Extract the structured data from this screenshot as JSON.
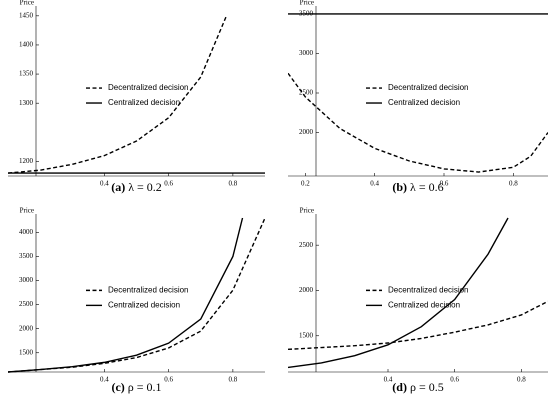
{
  "chart_data": [
    {
      "type": "line",
      "caption_label": "(a)",
      "caption_text": "λ = 0.2",
      "ylabel": "Price",
      "xlim": [
        0.1,
        0.9
      ],
      "xticks": [
        0.4,
        0.6,
        0.8
      ],
      "ylim": [
        1175,
        1460
      ],
      "yticks": [
        1200,
        1300,
        1350,
        1400,
        1450
      ],
      "series": [
        {
          "name": "Decentralized decision",
          "color": "#000000",
          "style": "dashed",
          "x": [
            0.1,
            0.2,
            0.3,
            0.4,
            0.5,
            0.6,
            0.7,
            0.78
          ],
          "values": [
            1180,
            1185,
            1195,
            1210,
            1235,
            1275,
            1345,
            1450
          ]
        },
        {
          "name": "Centralized decision",
          "color": "#000000",
          "style": "solid",
          "x": [
            0.1,
            0.9
          ],
          "values": [
            1180,
            1180
          ]
        }
      ]
    },
    {
      "type": "line",
      "caption_label": "(b)",
      "caption_text": "λ = 0.6",
      "ylabel": "Price",
      "xlim": [
        0.15,
        0.9
      ],
      "xticks": [
        0.2,
        0.4,
        0.6,
        0.8
      ],
      "ylim": [
        1450,
        3550
      ],
      "yticks": [
        2000,
        2500,
        3000,
        3500
      ],
      "series": [
        {
          "name": "Decentralized decision",
          "color": "#000000",
          "style": "dashed",
          "x": [
            0.15,
            0.2,
            0.3,
            0.4,
            0.5,
            0.6,
            0.7,
            0.8,
            0.85,
            0.9
          ],
          "values": [
            2750,
            2450,
            2050,
            1800,
            1640,
            1540,
            1500,
            1560,
            1700,
            2000
          ]
        },
        {
          "name": "Centralized decision",
          "color": "#000000",
          "style": "solid",
          "x": [
            0.15,
            0.9
          ],
          "values": [
            3500,
            3500
          ]
        }
      ]
    },
    {
      "type": "line",
      "caption_label": "(c)",
      "caption_text": "ρ = 0.1",
      "ylabel": "Price",
      "xlim": [
        0.1,
        0.9
      ],
      "xticks": [
        0.4,
        0.6,
        0.8
      ],
      "ylim": [
        1100,
        4300
      ],
      "yticks": [
        1500,
        2000,
        2500,
        3000,
        3500,
        4000
      ],
      "series": [
        {
          "name": "Decentralized decision",
          "color": "#000000",
          "style": "dashed",
          "x": [
            0.1,
            0.2,
            0.3,
            0.4,
            0.5,
            0.6,
            0.7,
            0.8,
            0.9
          ],
          "values": [
            1100,
            1150,
            1200,
            1280,
            1400,
            1600,
            1950,
            2800,
            4300
          ]
        },
        {
          "name": "Centralized decision",
          "color": "#000000",
          "style": "solid",
          "x": [
            0.1,
            0.2,
            0.3,
            0.4,
            0.5,
            0.6,
            0.7,
            0.8,
            0.83
          ],
          "values": [
            1100,
            1150,
            1210,
            1300,
            1450,
            1700,
            2200,
            3500,
            4300
          ]
        }
      ]
    },
    {
      "type": "line",
      "caption_label": "(d)",
      "caption_text": "ρ = 0.5",
      "ylabel": "Price",
      "xlim": [
        0.1,
        0.88
      ],
      "xticks": [
        0.4,
        0.6,
        0.8
      ],
      "ylim": [
        1100,
        2800
      ],
      "yticks": [
        1500,
        2000,
        2500
      ],
      "series": [
        {
          "name": "Decentralized decision",
          "color": "#000000",
          "style": "dashed",
          "x": [
            0.1,
            0.2,
            0.3,
            0.4,
            0.5,
            0.6,
            0.7,
            0.8,
            0.88
          ],
          "values": [
            1350,
            1370,
            1390,
            1420,
            1470,
            1540,
            1620,
            1730,
            1880
          ]
        },
        {
          "name": "Centralized decision",
          "color": "#000000",
          "style": "solid",
          "x": [
            0.1,
            0.2,
            0.3,
            0.4,
            0.5,
            0.6,
            0.7,
            0.76
          ],
          "values": [
            1150,
            1200,
            1280,
            1400,
            1600,
            1900,
            2400,
            2800
          ]
        }
      ]
    }
  ]
}
